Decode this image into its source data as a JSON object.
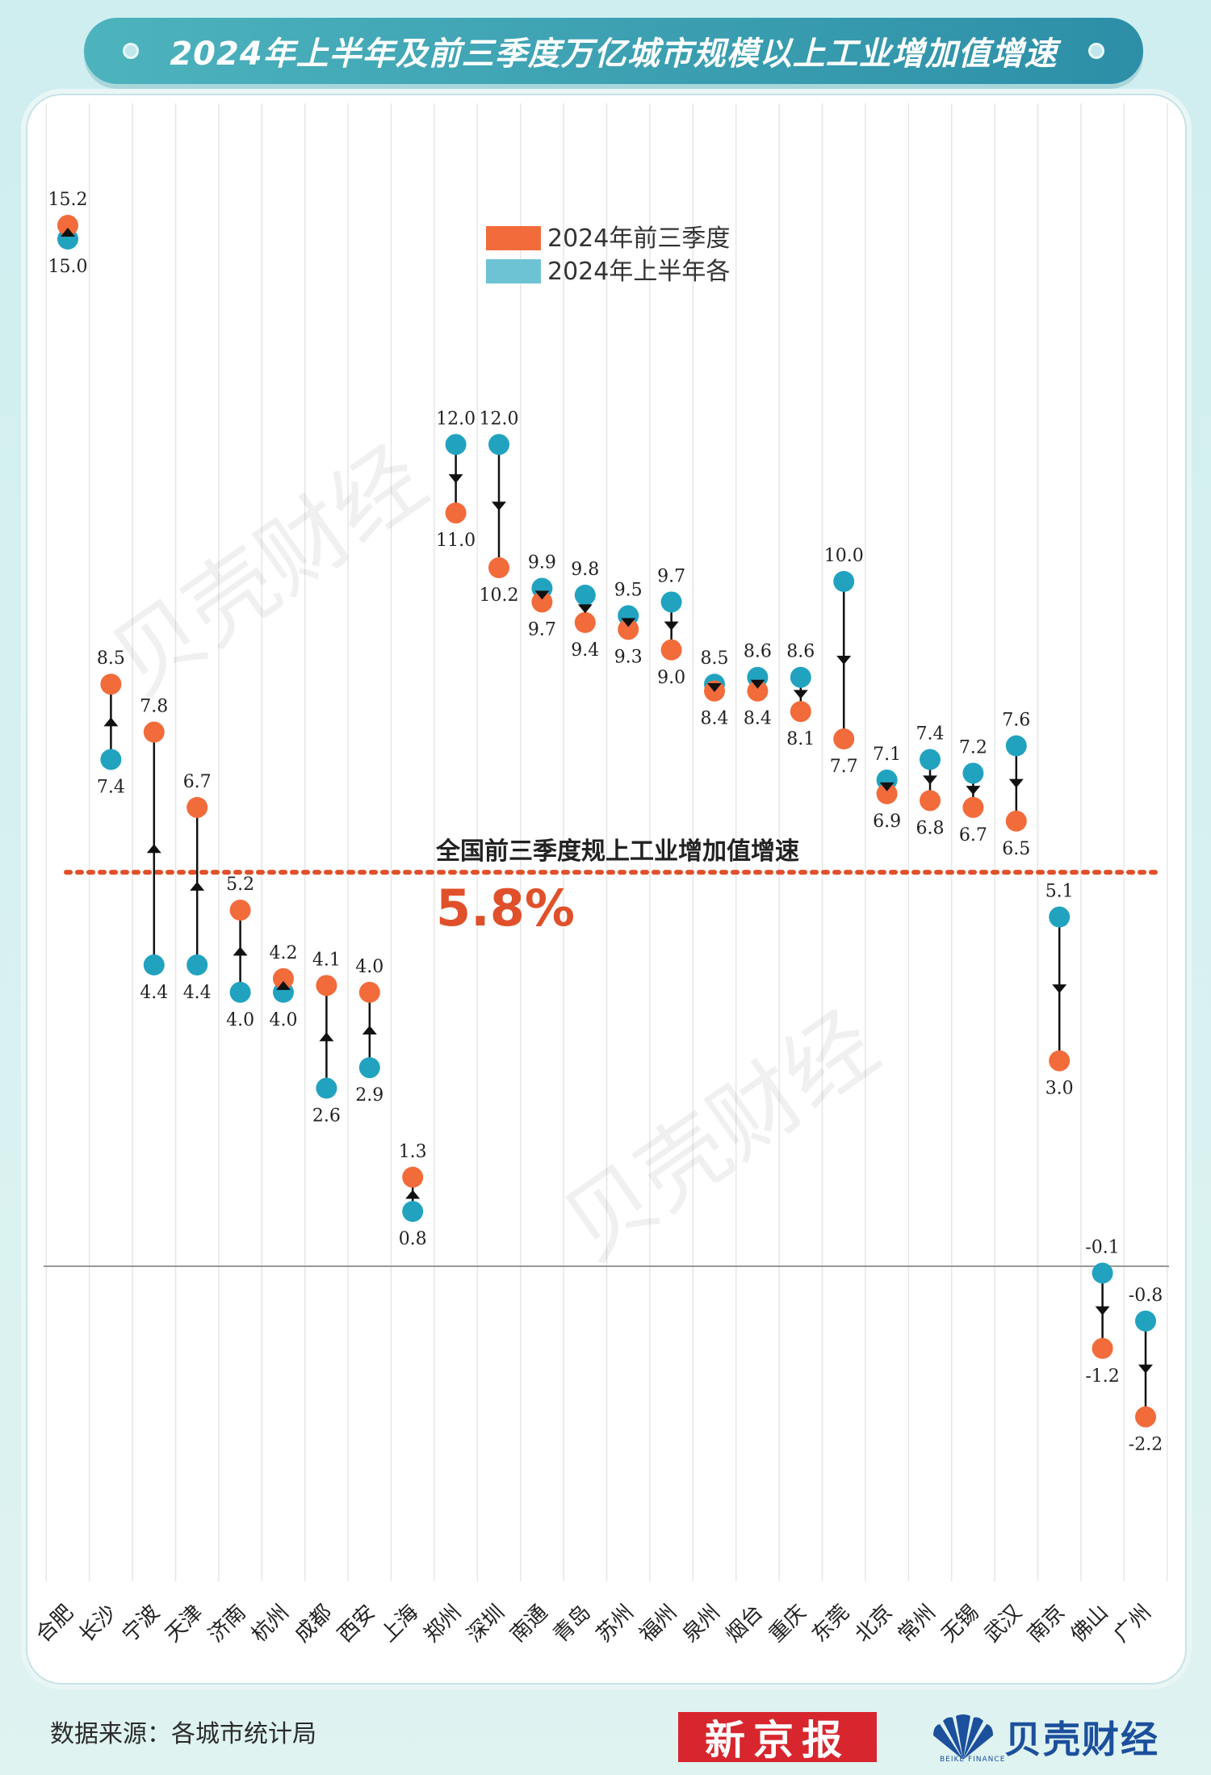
{
  "title": "2024年上半年及前三季度万亿城市规模以上工业增加值增速",
  "source_text": "数据来源：各城市统计局",
  "logos": {
    "xinjingbao": "新京报",
    "beike_name": "贝壳财经",
    "beike_sub": "BEIKE FINANCE"
  },
  "watermark": "贝壳财经",
  "colors": {
    "q3": "#f26b3a",
    "h1": "#21a3c0",
    "title_bg": "#2d8fa7",
    "refline": "#e0502a"
  },
  "chart_data": {
    "type": "dumbbell",
    "title": "2024年上半年及前三季度万亿城市规模以上工业增加值增速",
    "legend": {
      "placement": "top-center",
      "items": [
        {
          "key": "q3",
          "label": "2024年前三季度"
        },
        {
          "key": "h1",
          "label": "2024年上半年各"
        }
      ]
    },
    "reference_line": {
      "value": 5.8,
      "label": "全国前三季度规上工业增加值增速",
      "value_label": "5.8%"
    },
    "zero_line": 0,
    "ylim": [
      -3.5,
      16.5
    ],
    "grid": "vertical",
    "categories": [
      "合肥",
      "长沙",
      "宁波",
      "天津",
      "济南",
      "杭州",
      "成都",
      "西安",
      "上海",
      "郑州",
      "深圳",
      "南通",
      "青岛",
      "苏州",
      "福州",
      "泉州",
      "烟台",
      "重庆",
      "东莞",
      "北京",
      "常州",
      "无锡",
      "武汉",
      "南京",
      "佛山",
      "广州"
    ],
    "series": [
      {
        "key": "h1",
        "values": [
          15.0,
          7.4,
          4.4,
          4.4,
          4.0,
          4.0,
          2.6,
          2.9,
          0.8,
          12.0,
          12.0,
          9.9,
          9.8,
          9.5,
          9.7,
          8.5,
          8.6,
          8.6,
          10.0,
          7.1,
          7.4,
          7.2,
          7.6,
          5.1,
          -0.1,
          -0.8
        ],
        "labels": [
          "15.0",
          "7.4",
          "4.4",
          "4.4",
          "4.0",
          "4.0",
          "2.6",
          "2.9",
          "0.8",
          "12.0",
          "12.0",
          "9.9",
          "9.8",
          "9.5",
          "9.7",
          "8.5",
          "8.6",
          "8.6",
          "10.0",
          "7.1",
          "7.4",
          "7.2",
          "7.6",
          "5.1",
          "-0.1",
          "-0.8"
        ]
      },
      {
        "key": "q3",
        "values": [
          15.2,
          8.5,
          7.8,
          6.7,
          5.2,
          4.2,
          4.1,
          4.0,
          1.3,
          11.0,
          10.2,
          9.7,
          9.4,
          9.3,
          9.0,
          8.4,
          8.4,
          8.1,
          7.7,
          6.9,
          6.8,
          6.7,
          6.5,
          3.0,
          -1.2,
          -2.2
        ],
        "labels": [
          "15.2",
          "8.5",
          "7.8",
          "6.7",
          "5.2",
          "4.2",
          "4.1",
          "4.0",
          "1.3",
          "11.0",
          "10.2",
          "9.7",
          "9.4",
          "9.3",
          "9.0",
          "8.4",
          "8.4",
          "8.1",
          "7.7",
          "6.9",
          "6.8",
          "6.7",
          "6.5",
          "3.0",
          "-1.2",
          "-2.2"
        ]
      }
    ]
  }
}
